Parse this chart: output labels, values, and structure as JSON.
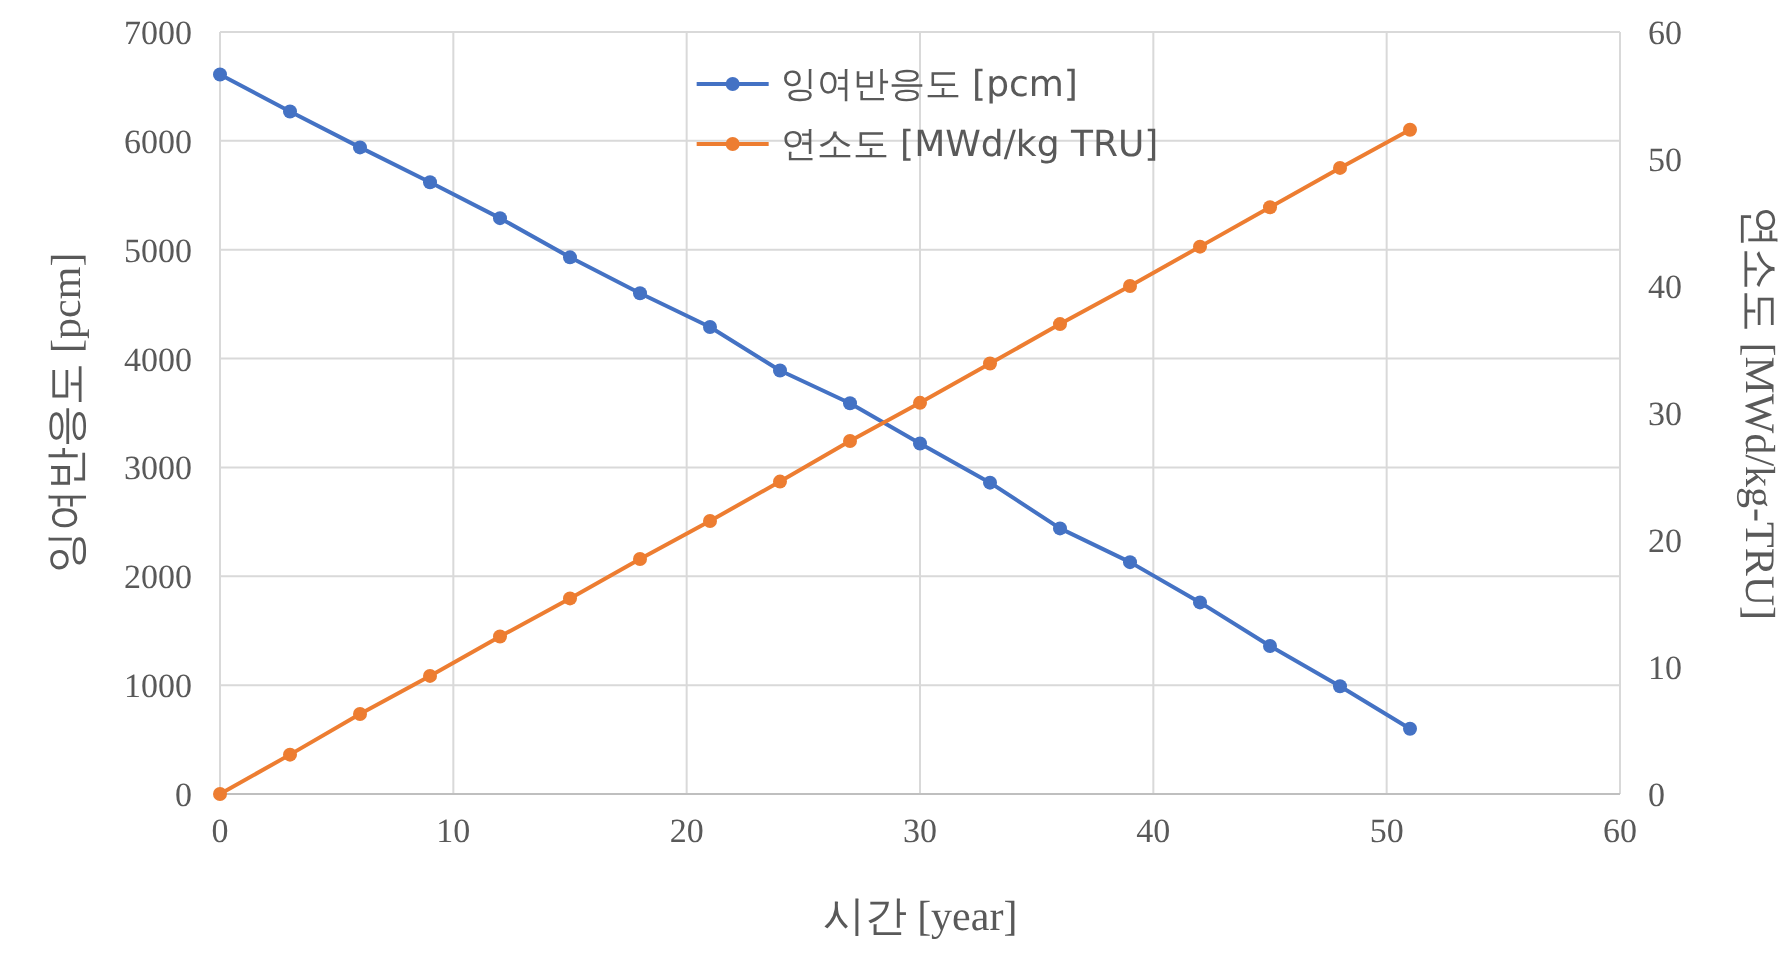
{
  "chart_data": {
    "type": "line",
    "xlabel": "시간 [year]",
    "ylabel": "잉여반응도 [pcm]",
    "y2label": "연소도 [MWd/kg-TRU]",
    "x": [
      0,
      3,
      6,
      9,
      12,
      15,
      18,
      21,
      24,
      27,
      30,
      33,
      36,
      39,
      42,
      45,
      48,
      51
    ],
    "series": [
      {
        "name": "잉여반응도 [pcm]",
        "color": "#4472c4",
        "values": [
          6610,
          6270,
          5940,
          5620,
          5290,
          4930,
          4600,
          4290,
          3890,
          3590,
          3220,
          2860,
          2440,
          2130,
          1760,
          1360,
          990,
          600
        ]
      },
      {
        "name": "연소도 [MWd/kg TRU]",
        "color": "#ed7d31",
        "axis": "y2",
        "values": [
          0,
          3.1,
          6.3,
          9.3,
          12.4,
          15.4,
          18.5,
          21.5,
          24.6,
          27.8,
          30.8,
          33.9,
          37.0,
          40.0,
          43.1,
          46.2,
          49.3,
          52.3
        ]
      }
    ],
    "xlim": [
      0,
      60
    ],
    "xticks": [
      0,
      10,
      20,
      30,
      40,
      50,
      60
    ],
    "ylim": [
      0,
      7000
    ],
    "yticks": [
      0,
      1000,
      2000,
      3000,
      4000,
      5000,
      6000,
      7000
    ],
    "y2lim": [
      0,
      60
    ],
    "y2ticks": [
      0,
      10,
      20,
      30,
      40,
      50,
      60
    ],
    "grid": true,
    "legend": "top",
    "marker": "circle",
    "line_style": "solid"
  }
}
